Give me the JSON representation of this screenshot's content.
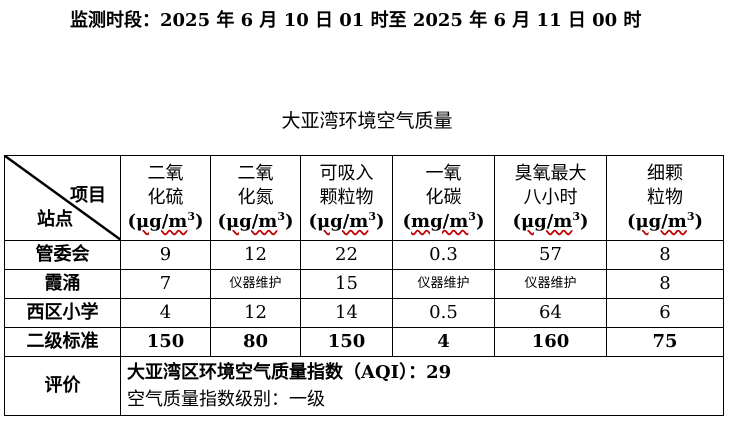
{
  "header": {
    "period": "监测时段：2025 年 6 月 10 日 01 时至 2025 年 6 月 11 日 00 时",
    "title": "大亚湾环境空气质量"
  },
  "table": {
    "corner_item": "项目",
    "corner_site": "站点",
    "pollutants": [
      {
        "line1": "二氧",
        "line2": "化硫",
        "unit_a": "(",
        "unit_b": "μg/m",
        "unit_c": "3",
        "unit_d": ")"
      },
      {
        "line1": "二氧",
        "line2": "化氮",
        "unit_a": "(",
        "unit_b": "μg/m",
        "unit_c": "3",
        "unit_d": ")"
      },
      {
        "line1": "可吸入",
        "line2": "颗粒物",
        "unit_a": "(",
        "unit_b": "μg/m",
        "unit_c": "3",
        "unit_d": ")"
      },
      {
        "line1": "一氧",
        "line2": "化碳",
        "unit_a": "(",
        "unit_b": "mg/m",
        "unit_c": "3",
        "unit_d": ")"
      },
      {
        "line1": "臭氧最大",
        "line2": "八小时",
        "unit_a": "(",
        "unit_b": "μg/m",
        "unit_c": "3",
        "unit_d": ")"
      },
      {
        "line1": "细颗",
        "line2": "粒物",
        "unit_a": "(",
        "unit_b": "μg/m",
        "unit_c": "3",
        "unit_d": ")"
      }
    ],
    "rows": [
      {
        "site": "管委会",
        "values": [
          "9",
          "12",
          "22",
          "0.3",
          "57",
          "8"
        ]
      },
      {
        "site": "霞涌",
        "values": [
          "7",
          "仪器维护",
          "15",
          "仪器维护",
          "仪器维护",
          "8"
        ]
      },
      {
        "site": "西区小学",
        "values": [
          "4",
          "12",
          "14",
          "0.5",
          "64",
          "6"
        ]
      }
    ],
    "standard": {
      "label": "二级标准",
      "values": [
        "150",
        "80",
        "150",
        "4",
        "160",
        "75"
      ]
    },
    "evaluation": {
      "label": "评价",
      "aqi_line": "大亚湾区环境空气质量指数（AQI）：29",
      "level_line": "空气质量指数级别：一级"
    }
  }
}
